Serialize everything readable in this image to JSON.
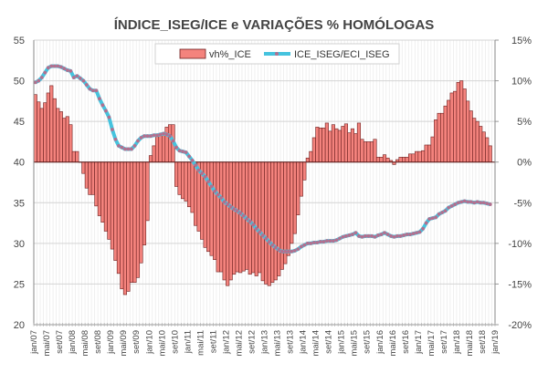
{
  "chart_data": {
    "type": "bar+line",
    "title": "ÍNDICE_ISEG/ICE e VARIAÇÕES % HOMÓLOGAS",
    "x_start": "jan/07",
    "x_end": "nov/18",
    "x_tick_labels": [
      "jan/07",
      "mai/07",
      "set/07",
      "jan/08",
      "mai/08",
      "set/08",
      "jan/09",
      "mai/09",
      "set/09",
      "jan/10",
      "mai/10",
      "set/10",
      "jan/11",
      "mai/11",
      "set/11",
      "jan/12",
      "mai/12",
      "set/12",
      "jan/13",
      "mai/13",
      "set/13",
      "jan/14",
      "mai/14",
      "set/14",
      "jan/15",
      "mai/15",
      "set/15",
      "jan/16",
      "mai/16",
      "set/16",
      "jan/17",
      "mai/17",
      "set/17",
      "jan/18",
      "mai/18",
      "set/18",
      "jan/19"
    ],
    "y_left": {
      "min": 20,
      "max": 55,
      "step": 5,
      "ticks": [
        "20",
        "25",
        "30",
        "35",
        "40",
        "45",
        "50",
        "55"
      ]
    },
    "y_right": {
      "min": -20,
      "max": 15,
      "step": 5,
      "ticks": [
        "-20%",
        "-15%",
        "-10%",
        "-5%",
        "0%",
        "5%",
        "10%",
        "15%"
      ]
    },
    "grid": true,
    "legend": {
      "placement": "top-center",
      "entries": [
        "vh%_ICE",
        "ICE_ISEG/ECI_ISEG"
      ]
    },
    "colors": {
      "bar_fill": "#F4837D",
      "bar_stroke": "#6b1f1f",
      "line": "#45C3DE",
      "marker": "#B2708F"
    },
    "series": [
      {
        "name": "vh%_ICE",
        "type": "bar",
        "axis": "right",
        "unit": "%",
        "values": [
          8.3,
          7.4,
          6.6,
          7.3,
          8.5,
          9.4,
          7.8,
          6.6,
          6.2,
          5.4,
          5.6,
          4.6,
          1.3,
          1.3,
          0,
          -1.4,
          -3.2,
          -4.0,
          -4.0,
          -5.4,
          -6.6,
          -7.4,
          -8.5,
          -9.5,
          -10.7,
          -12.1,
          -13.7,
          -15.6,
          -16.3,
          -15.9,
          -14.8,
          -14.8,
          -14.2,
          -12.4,
          -10.2,
          -7.2,
          0.8,
          2.0,
          3.2,
          3.4,
          3.5,
          4.3,
          4.6,
          4.6,
          -3.0,
          -4.0,
          -4.5,
          -4.8,
          -5.5,
          -6.2,
          -7.8,
          -8.5,
          -9.5,
          -10.5,
          -11.0,
          -11.5,
          -12.0,
          -13.5,
          -13.5,
          -14.5,
          -15.2,
          -14.5,
          -13.8,
          -13.5,
          -13.6,
          -13.4,
          -13.2,
          -13.8,
          -13.6,
          -14.0,
          -13.6,
          -14.6,
          -15.0,
          -15.2,
          -14.8,
          -14.5,
          -14.0,
          -13.2,
          -12.5,
          -11.5,
          -10.0,
          -8.8,
          -6.5,
          -4.2,
          -2.2,
          0.5,
          1.3,
          3.0,
          4.3,
          4.2,
          4.2,
          4.8,
          3.8,
          4.6,
          4.1,
          3.9,
          4.4,
          4.7,
          3.6,
          4.1,
          3.5,
          4.8,
          2.8,
          2.5,
          2.5,
          2.5,
          2.8,
          0.6,
          0.6,
          0.9,
          0.5,
          0.2,
          -0.3,
          0.3,
          0.6,
          0.6,
          0.6,
          1.0,
          1.0,
          1.3,
          1.3,
          1.4,
          2.1,
          2.1,
          3.1,
          5.2,
          6.0,
          6.0,
          6.9,
          7.6,
          8.5,
          8.7,
          9.8,
          10.0,
          9.0,
          7.5,
          6.3,
          5.4,
          5.0,
          4.4,
          3.7,
          3.0,
          2.0
        ]
      },
      {
        "name": "ICE_ISEG/ECI_ISEG",
        "type": "line",
        "axis": "left",
        "values": [
          49.8,
          50.0,
          50.4,
          51.0,
          51.6,
          51.8,
          51.8,
          51.8,
          51.7,
          51.5,
          51.3,
          51.2,
          50.4,
          50.6,
          50.3,
          50.0,
          49.5,
          49.0,
          48.8,
          48.8,
          47.8,
          47.0,
          46.3,
          45.5,
          44.0,
          42.8,
          42.0,
          41.8,
          41.6,
          41.6,
          41.6,
          42.0,
          42.6,
          43.0,
          43.2,
          43.2,
          43.2,
          43.3,
          43.3,
          43.4,
          43.5,
          43.4,
          43.2,
          42.6,
          41.8,
          41.4,
          41.3,
          41.2,
          40.7,
          40.2,
          39.6,
          39.0,
          38.6,
          38.2,
          37.6,
          37.0,
          36.4,
          36.0,
          35.6,
          35.1,
          34.8,
          34.5,
          34.2,
          34.0,
          33.7,
          33.4,
          33.0,
          32.7,
          32.3,
          31.8,
          31.4,
          31.0,
          30.6,
          30.2,
          29.8,
          29.5,
          29.2,
          29.0,
          29.0,
          29.0,
          29.0,
          29.1,
          29.3,
          29.6,
          29.8,
          30.0,
          30.0,
          30.1,
          30.1,
          30.2,
          30.2,
          30.3,
          30.3,
          30.3,
          30.4,
          30.6,
          30.8,
          30.9,
          31.0,
          31.1,
          31.3,
          30.9,
          30.8,
          30.9,
          30.9,
          30.9,
          30.8,
          31.0,
          31.1,
          31.3,
          31.1,
          30.9,
          30.8,
          30.9,
          30.9,
          31.0,
          31.1,
          31.1,
          31.2,
          31.3,
          31.4,
          31.8,
          32.5,
          33.0,
          33.1,
          33.2,
          33.6,
          33.8,
          34.0,
          34.4,
          34.6,
          34.8,
          35.0,
          35.1,
          35.2,
          35.1,
          35.1,
          35.0,
          35.1,
          35.0,
          35.0,
          34.9,
          34.8
        ]
      }
    ]
  }
}
